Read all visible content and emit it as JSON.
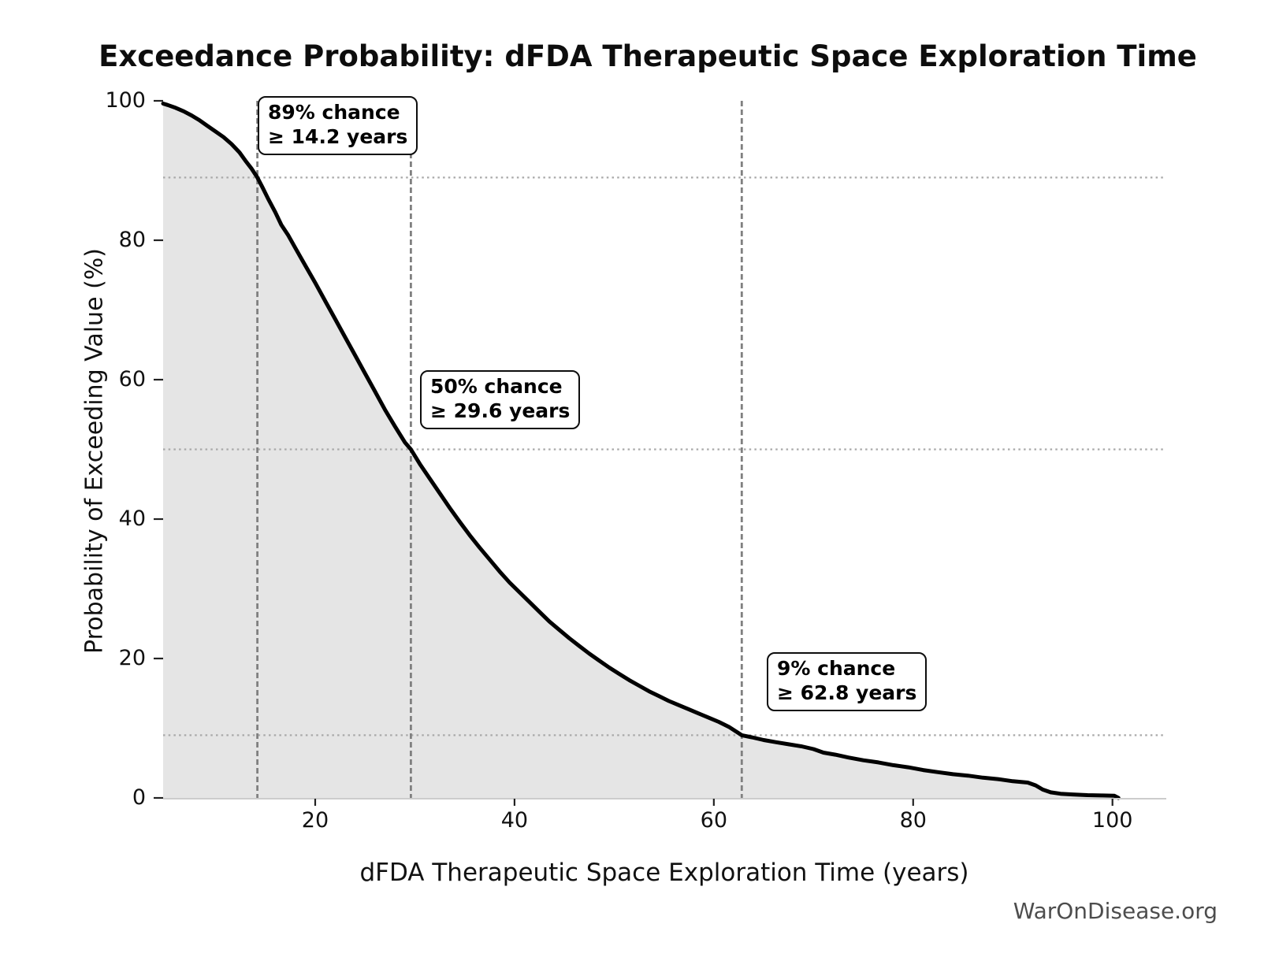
{
  "title": "Exceedance Probability: dFDA Therapeutic Space Exploration Time",
  "watermark": "WarOnDisease.org",
  "chart_data": {
    "type": "area",
    "title": "Exceedance Probability: dFDA Therapeutic Space Exploration Time",
    "xlabel": "dFDA Therapeutic Space Exploration Time (years)",
    "ylabel": "Probability of Exceeding Value (%)",
    "xlim": [
      4.74,
      105.4
    ],
    "ylim": [
      0,
      100
    ],
    "x_ticks": [
      20,
      40,
      60,
      80,
      100
    ],
    "y_ticks": [
      0,
      20,
      40,
      60,
      80,
      100
    ],
    "legend": "none",
    "grid": "reference lines only",
    "series": [
      {
        "name": "exceedance-curve",
        "points": [
          [
            4.74,
            99.6
          ],
          [
            5.2,
            99.4
          ],
          [
            6.0,
            99.0
          ],
          [
            6.8,
            98.5
          ],
          [
            7.6,
            97.9
          ],
          [
            8.4,
            97.2
          ],
          [
            9.2,
            96.4
          ],
          [
            10.0,
            95.6
          ],
          [
            10.8,
            94.8
          ],
          [
            11.6,
            93.8
          ],
          [
            12.4,
            92.6
          ],
          [
            13.0,
            91.4
          ],
          [
            13.6,
            90.3
          ],
          [
            14.2,
            89.0
          ],
          [
            14.7,
            87.6
          ],
          [
            15.3,
            85.9
          ],
          [
            16.0,
            84.0
          ],
          [
            16.6,
            82.2
          ],
          [
            17.3,
            80.7
          ],
          [
            18.0,
            78.9
          ],
          [
            19.0,
            76.4
          ],
          [
            20.0,
            73.9
          ],
          [
            21.0,
            71.3
          ],
          [
            22.0,
            68.7
          ],
          [
            23.0,
            66.1
          ],
          [
            24.0,
            63.5
          ],
          [
            25.0,
            60.9
          ],
          [
            26.0,
            58.3
          ],
          [
            27.0,
            55.7
          ],
          [
            28.0,
            53.3
          ],
          [
            29.0,
            51.0
          ],
          [
            29.6,
            50.0
          ],
          [
            30.5,
            47.9
          ],
          [
            31.5,
            45.8
          ],
          [
            32.5,
            43.7
          ],
          [
            33.5,
            41.6
          ],
          [
            34.5,
            39.6
          ],
          [
            35.5,
            37.7
          ],
          [
            36.5,
            35.9
          ],
          [
            37.5,
            34.2
          ],
          [
            38.5,
            32.5
          ],
          [
            39.5,
            30.9
          ],
          [
            40.5,
            29.5
          ],
          [
            41.5,
            28.1
          ],
          [
            42.5,
            26.7
          ],
          [
            43.5,
            25.3
          ],
          [
            44.5,
            24.1
          ],
          [
            45.5,
            22.9
          ],
          [
            46.5,
            21.8
          ],
          [
            47.5,
            20.7
          ],
          [
            48.5,
            19.7
          ],
          [
            49.5,
            18.7
          ],
          [
            50.5,
            17.8
          ],
          [
            51.5,
            16.9
          ],
          [
            52.5,
            16.1
          ],
          [
            53.5,
            15.3
          ],
          [
            54.5,
            14.6
          ],
          [
            55.5,
            13.9
          ],
          [
            56.5,
            13.3
          ],
          [
            57.5,
            12.7
          ],
          [
            58.5,
            12.1
          ],
          [
            59.5,
            11.5
          ],
          [
            60.5,
            10.9
          ],
          [
            61.5,
            10.2
          ],
          [
            62.8,
            9.0
          ],
          [
            63.8,
            8.7
          ],
          [
            65.0,
            8.3
          ],
          [
            66.2,
            8.0
          ],
          [
            67.5,
            7.7
          ],
          [
            68.8,
            7.4
          ],
          [
            70.0,
            7.0
          ],
          [
            71.0,
            6.5
          ],
          [
            72.2,
            6.2
          ],
          [
            73.5,
            5.8
          ],
          [
            75.0,
            5.4
          ],
          [
            76.5,
            5.1
          ],
          [
            78.0,
            4.7
          ],
          [
            79.5,
            4.4
          ],
          [
            81.0,
            4.0
          ],
          [
            82.5,
            3.7
          ],
          [
            84.0,
            3.4
          ],
          [
            85.5,
            3.2
          ],
          [
            87.0,
            2.9
          ],
          [
            88.5,
            2.7
          ],
          [
            90.0,
            2.4
          ],
          [
            91.5,
            2.2
          ],
          [
            92.3,
            1.8
          ],
          [
            93.0,
            1.2
          ],
          [
            93.8,
            0.8
          ],
          [
            94.8,
            0.6
          ],
          [
            96.0,
            0.5
          ],
          [
            97.5,
            0.4
          ],
          [
            99.0,
            0.35
          ],
          [
            100.2,
            0.3
          ],
          [
            100.6,
            0.0
          ]
        ]
      }
    ],
    "reference_lines": {
      "vertical_dashed_years": [
        14.2,
        29.6,
        62.8
      ],
      "horizontal_dotted_percents": [
        89,
        50,
        9
      ]
    },
    "annotations": [
      {
        "line1": "89% chance",
        "line2": "≥ 14.2 years",
        "percent": 89,
        "years": 14.2,
        "anchor": {
          "year": 14.2,
          "pct": 100.7
        }
      },
      {
        "line1": "50% chance",
        "line2": "≥ 29.6 years",
        "percent": 50,
        "years": 29.6,
        "anchor": {
          "year": 30.5,
          "pct": 61.4
        }
      },
      {
        "line1": "9% chance",
        "line2": "≥ 62.8 years",
        "percent": 9,
        "years": 62.8,
        "anchor": {
          "year": 65.3,
          "pct": 20.9
        }
      }
    ],
    "colors": {
      "curve": "#000000",
      "fill": "#e5e5e5",
      "dashed_line": "#808080",
      "dotted_line": "#a9a9a9",
      "axis_line": "#cccccc",
      "tick": "#222222",
      "text": "#111111",
      "watermark": "#4d4d4d",
      "background": "#ffffff"
    }
  }
}
